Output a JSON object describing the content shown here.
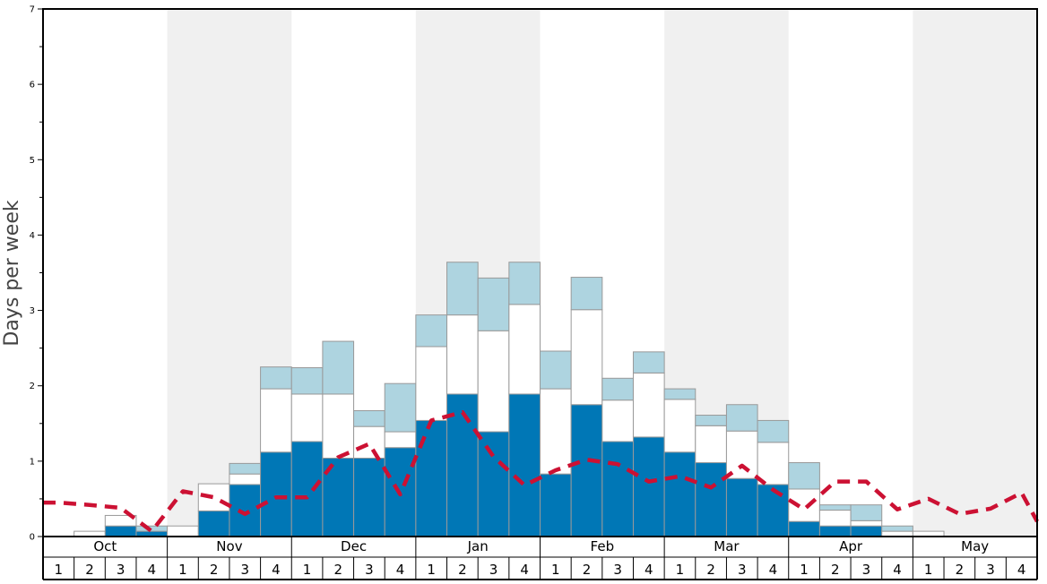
{
  "chart_data": {
    "type": "bar",
    "stacked": true,
    "ylabel": "Days per week",
    "ylim": [
      0,
      7
    ],
    "y_ticks": [
      "0",
      "1",
      "2",
      "3",
      "4",
      "5",
      "6",
      "7"
    ],
    "grid": false,
    "months": [
      "Oct",
      "Nov",
      "Dec",
      "Jan",
      "Feb",
      "Mar",
      "Apr",
      "May"
    ],
    "weeks": [
      "1",
      "2",
      "3",
      "4"
    ],
    "series": [
      {
        "color": "#0077b6",
        "values": [
          0,
          0,
          0.14,
          0.07,
          0,
          0.34,
          0.69,
          1.12,
          1.26,
          1.04,
          1.04,
          1.18,
          1.54,
          1.89,
          1.39,
          1.89,
          0.83,
          1.75,
          1.26,
          1.32,
          1.12,
          0.98,
          0.77,
          0.69,
          0.2,
          0.14,
          0.14,
          0,
          0,
          0,
          0,
          0
        ]
      },
      {
        "color": "#ffffff",
        "values": [
          0,
          0.07,
          0.14,
          0,
          0.14,
          0.36,
          0.14,
          0.84,
          0.63,
          0.85,
          0.42,
          0.21,
          0.98,
          1.05,
          1.34,
          1.19,
          1.13,
          1.26,
          0.55,
          0.85,
          0.7,
          0.49,
          0.63,
          0.56,
          0.43,
          0.21,
          0.07,
          0.07,
          0.07,
          0,
          0,
          0
        ]
      },
      {
        "color": "#aed4e0",
        "values": [
          0,
          0,
          0,
          0.07,
          0,
          0,
          0.14,
          0.29,
          0.35,
          0.7,
          0.21,
          0.64,
          0.42,
          0.7,
          0.7,
          0.56,
          0.5,
          0.43,
          0.29,
          0.28,
          0.14,
          0.14,
          0.35,
          0.29,
          0.35,
          0.07,
          0.21,
          0.07,
          0,
          0,
          0,
          0
        ]
      }
    ],
    "average_line": {
      "color": "#cc1133",
      "style": "dashed",
      "values": [
        0.45,
        0.42,
        0.38,
        0.07,
        0.6,
        0.52,
        0.3,
        0.52,
        0.52,
        1.05,
        1.23,
        0.56,
        1.54,
        1.65,
        1.06,
        0.68,
        0.88,
        1.02,
        0.96,
        0.73,
        0.8,
        0.65,
        0.94,
        0.62,
        0.36,
        0.73,
        0.73,
        0.36,
        0.5,
        0.3,
        0.37,
        0.58
      ],
      "end_value": 0.2
    },
    "shaded_months": [
      "Nov",
      "Jan",
      "Mar",
      "May"
    ],
    "shade_color": "#f0f0f0"
  }
}
